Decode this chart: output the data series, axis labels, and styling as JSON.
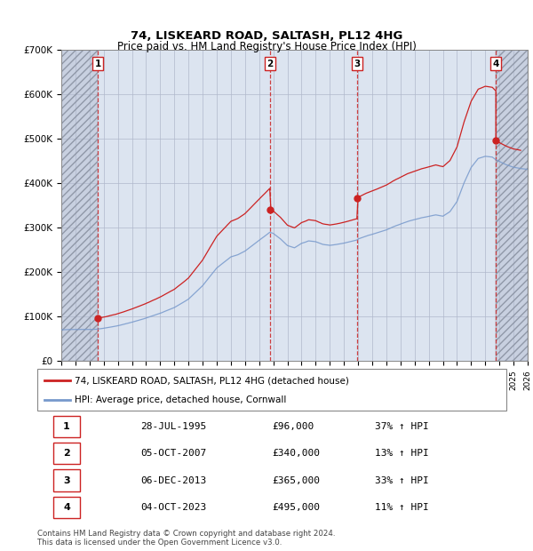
{
  "title": "74, LISKEARD ROAD, SALTASH, PL12 4HG",
  "subtitle": "Price paid vs. HM Land Registry's House Price Index (HPI)",
  "xlim_start": 1993.0,
  "xlim_end": 2026.0,
  "ylim": [
    0,
    700000
  ],
  "yticks": [
    0,
    100000,
    200000,
    300000,
    400000,
    500000,
    600000,
    700000
  ],
  "ytick_labels": [
    "£0",
    "£100K",
    "£200K",
    "£300K",
    "£400K",
    "£500K",
    "£600K",
    "£700K"
  ],
  "background_color": "#dce4f0",
  "hatch_bg_color": "#c8d0e0",
  "grid_color": "#b0b8cc",
  "sale_dates_decimal": [
    1995.58,
    2007.76,
    2013.92,
    2023.75
  ],
  "sale_prices": [
    96000,
    340000,
    365000,
    495000
  ],
  "sale_labels": [
    "1",
    "2",
    "3",
    "4"
  ],
  "sale_color": "#cc2222",
  "hpi_color": "#7799cc",
  "legend_label_red": "74, LISKEARD ROAD, SALTASH, PL12 4HG (detached house)",
  "legend_label_blue": "HPI: Average price, detached house, Cornwall",
  "table_entries": [
    {
      "num": "1",
      "date": "28-JUL-1995",
      "price": "£96,000",
      "hpi": "37% ↑ HPI"
    },
    {
      "num": "2",
      "date": "05-OCT-2007",
      "price": "£340,000",
      "hpi": "13% ↑ HPI"
    },
    {
      "num": "3",
      "date": "06-DEC-2013",
      "price": "£365,000",
      "hpi": "33% ↑ HPI"
    },
    {
      "num": "4",
      "date": "04-OCT-2023",
      "price": "£495,000",
      "hpi": "11% ↑ HPI"
    }
  ],
  "footnote": "Contains HM Land Registry data © Crown copyright and database right 2024.\nThis data is licensed under the Open Government Licence v3.0."
}
